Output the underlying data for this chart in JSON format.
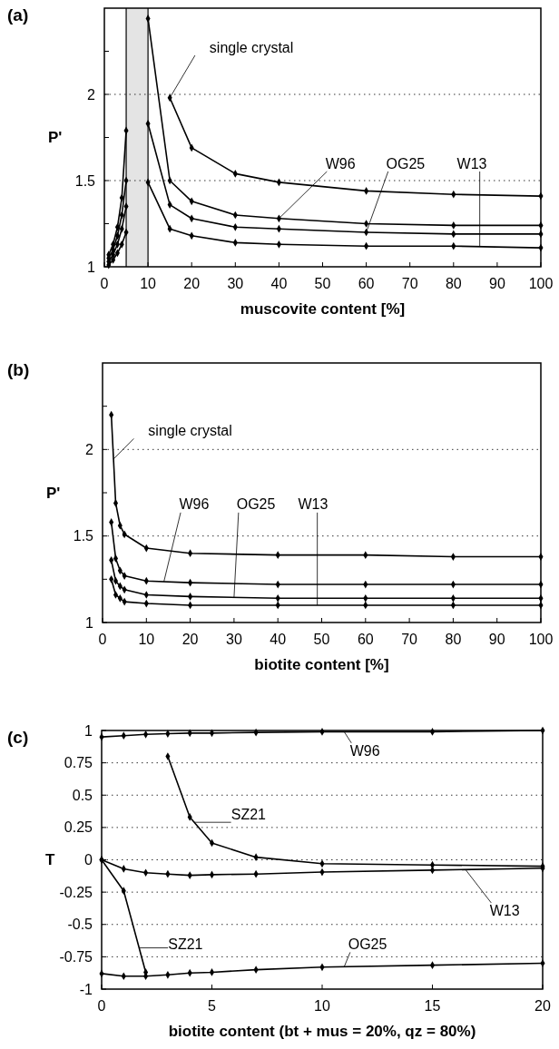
{
  "chart_data": [
    {
      "type": "line",
      "title": "(a)",
      "xlabel": "muscovite content [%]",
      "ylabel": "P'",
      "marker": "diamond",
      "grid": "y",
      "x": [
        10,
        15,
        20,
        30,
        40,
        60,
        80,
        100
      ],
      "series": [
        {
          "name": "single crystal",
          "color": "#000000",
          "values": [
            null,
            1.98,
            1.69,
            1.54,
            1.49,
            1.44,
            1.42,
            1.41
          ]
        },
        {
          "name": "W96",
          "color": "#000000",
          "values": [
            2.44,
            1.5,
            1.38,
            1.3,
            1.28,
            1.25,
            1.24,
            1.24
          ]
        },
        {
          "name": "OG25",
          "color": "#000000",
          "values": [
            1.83,
            1.36,
            1.28,
            1.23,
            1.22,
            1.2,
            1.19,
            1.19
          ]
        },
        {
          "name": "W13",
          "color": "#000000",
          "values": [
            1.49,
            1.22,
            1.18,
            1.14,
            1.13,
            1.12,
            1.12,
            1.11
          ]
        },
        {
          "color": "#000000",
          "x": [
            1,
            2,
            3,
            4,
            5
          ],
          "values": [
            1.07,
            1.13,
            1.23,
            1.4,
            1.79
          ]
        },
        {
          "color": "#000000",
          "x": [
            1,
            2,
            3,
            4,
            5
          ],
          "values": [
            1.05,
            1.1,
            1.18,
            1.3,
            1.5
          ]
        },
        {
          "color": "#000000",
          "x": [
            1,
            2,
            3,
            4,
            5
          ],
          "values": [
            1.03,
            1.07,
            1.13,
            1.22,
            1.35
          ]
        },
        {
          "color": "#000000",
          "x": [
            1,
            2,
            3,
            4,
            5
          ],
          "values": [
            1.01,
            1.04,
            1.08,
            1.13,
            1.2
          ]
        }
      ],
      "xlim": [
        0,
        100
      ],
      "ylim": [
        1,
        2.5
      ],
      "xticks": [
        0,
        10,
        20,
        30,
        40,
        50,
        60,
        70,
        80,
        90,
        100
      ],
      "yticks": [
        1,
        {
          "value": 1.25,
          "label": null
        },
        1.5,
        {
          "value": 1.75,
          "label": null
        },
        2,
        {
          "value": 2.25,
          "label": null
        }
      ],
      "bands": [
        {
          "axis": "x",
          "from": 5,
          "to": 10,
          "color": "#e4e4e4"
        }
      ],
      "ref_lines": [
        {
          "axis": "x",
          "value": 5,
          "color": "#000000"
        },
        {
          "axis": "x",
          "value": 10,
          "color": "#000000"
        }
      ]
    },
    {
      "type": "line",
      "title": "(b)",
      "xlabel": "biotite content [%]",
      "ylabel": "P'",
      "marker": "diamond",
      "grid": "y",
      "x": [
        2,
        3,
        4,
        5,
        10,
        20,
        40,
        60,
        80,
        100
      ],
      "series": [
        {
          "name": "single crystal",
          "color": "#000000",
          "values": [
            2.2,
            1.69,
            1.56,
            1.51,
            1.43,
            1.4,
            1.39,
            1.39,
            1.38,
            1.38
          ]
        },
        {
          "name": "W96",
          "color": "#000000",
          "values": [
            1.58,
            1.37,
            1.3,
            1.27,
            1.24,
            1.23,
            1.22,
            1.22,
            1.22,
            1.22
          ]
        },
        {
          "name": "OG25",
          "color": "#000000",
          "values": [
            1.36,
            1.24,
            1.21,
            1.19,
            1.16,
            1.15,
            1.14,
            1.14,
            1.14,
            1.14
          ]
        },
        {
          "name": "W13",
          "color": "#000000",
          "values": [
            1.25,
            1.16,
            1.14,
            1.12,
            1.11,
            1.1,
            1.1,
            1.1,
            1.1,
            1.1
          ]
        }
      ],
      "xlim": [
        0,
        100
      ],
      "ylim": [
        1,
        2.5
      ],
      "xticks": [
        0,
        10,
        20,
        30,
        40,
        50,
        60,
        70,
        80,
        90,
        100
      ],
      "yticks": [
        1,
        {
          "value": 1.25,
          "label": null
        },
        1.5,
        {
          "value": 1.75,
          "label": null
        },
        2,
        {
          "value": 2.25,
          "label": null
        }
      ]
    },
    {
      "type": "line",
      "title": "(c)",
      "xlabel": "biotite content (bt + mus = 20%, qz = 80%)",
      "ylabel": "T",
      "marker": "diamond",
      "grid": "y",
      "x": [
        0,
        1,
        2,
        3,
        4,
        5,
        7,
        10,
        15,
        20
      ],
      "series": [
        {
          "name": "W96",
          "color": "#000000",
          "values": [
            0.95,
            0.96,
            0.97,
            0.975,
            0.98,
            0.98,
            0.985,
            0.99,
            0.99,
            1.0
          ]
        },
        {
          "name": "SZ21",
          "color": "#000000",
          "values": [
            null,
            null,
            null,
            0.8,
            0.33,
            0.13,
            0.02,
            -0.03,
            -0.04,
            -0.05
          ]
        },
        {
          "name": "W13",
          "color": "#000000",
          "values": [
            0,
            -0.07,
            -0.1,
            -0.11,
            -0.12,
            -0.115,
            -0.11,
            -0.095,
            -0.08,
            -0.065
          ]
        },
        {
          "name": "SZ21",
          "color": "#000000",
          "values": [
            0,
            -0.24,
            -0.87,
            null,
            null,
            null,
            null,
            null,
            null,
            null
          ]
        },
        {
          "name": "OG25",
          "color": "#000000",
          "values": [
            -0.88,
            -0.9,
            -0.9,
            -0.89,
            -0.875,
            -0.87,
            -0.85,
            -0.83,
            -0.815,
            -0.8
          ]
        }
      ],
      "xlim": [
        0,
        20
      ],
      "ylim": [
        -1,
        1
      ],
      "xticks": [
        0,
        5,
        10,
        15,
        20
      ],
      "yticks": [
        -1,
        -0.75,
        -0.5,
        -0.25,
        0,
        0.25,
        0.5,
        0.75,
        1
      ]
    }
  ]
}
